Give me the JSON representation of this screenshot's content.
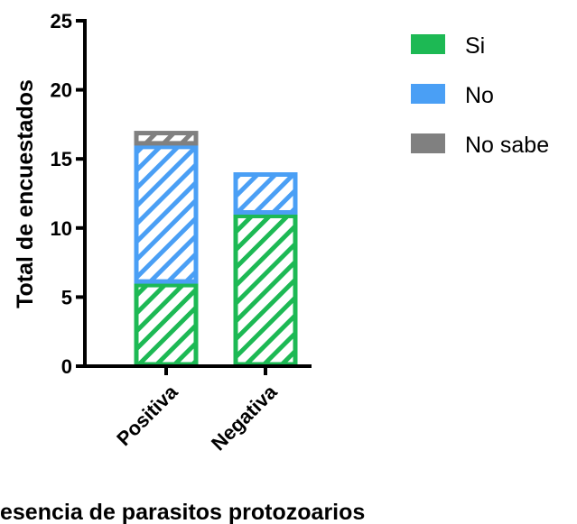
{
  "chart_data": {
    "type": "bar",
    "stacked": true,
    "categories": [
      "Positiva",
      "Negativa"
    ],
    "series": [
      {
        "name": "Si",
        "values": [
          6,
          11
        ],
        "color": "#1DB954"
      },
      {
        "name": "No",
        "values": [
          10,
          3
        ],
        "color": "#4A9FF5"
      },
      {
        "name": "No sabe",
        "values": [
          1,
          0
        ],
        "color": "#808080"
      }
    ],
    "pattern": "diagonal-hatch",
    "ylabel": "Total de encuestados",
    "xlabel": "esencia de parasitos protozoarios",
    "ylim": [
      0,
      25
    ],
    "yticks": [
      0,
      5,
      10,
      15,
      20,
      25
    ],
    "grid": false,
    "legend_position": "right"
  }
}
